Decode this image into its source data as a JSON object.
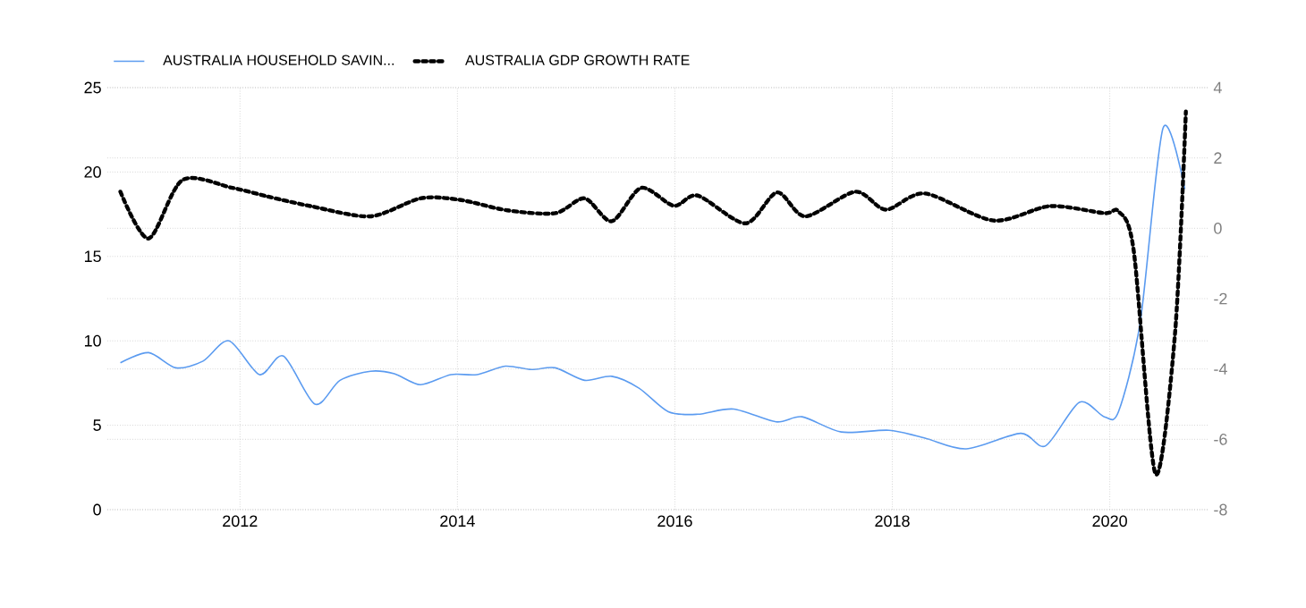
{
  "chart_data": {
    "type": "line",
    "legend": "top left",
    "grid": true,
    "xlim": [
      2010.78,
      2020.9
    ],
    "xticks": [
      2012,
      2014,
      2016,
      2018,
      2020
    ],
    "ylim": [
      0,
      25
    ],
    "yticks": [
      0,
      5,
      10,
      15,
      20,
      25
    ],
    "y2lim": [
      -8,
      4
    ],
    "y2ticks": [
      -8,
      -6,
      -4,
      -2,
      0,
      2,
      4
    ],
    "series": [
      {
        "name": "AUSTRALIA  HOUSEHOLD  SAVIN...",
        "color": "#5b9bf0",
        "line_style": "solid",
        "x": [
          2010.9,
          2011.16,
          2011.41,
          2011.66,
          2011.9,
          2012.18,
          2012.4,
          2012.69,
          2012.92,
          2013.2,
          2013.42,
          2013.66,
          2013.94,
          2014.18,
          2014.44,
          2014.68,
          2014.9,
          2015.17,
          2015.42,
          2015.67,
          2015.94,
          2016.21,
          2016.54,
          2016.93,
          2017.17,
          2017.53,
          2017.97,
          2018.3,
          2018.68,
          2019.18,
          2019.41,
          2019.72,
          2019.95,
          2020.08,
          2020.28,
          2020.49,
          2020.69
        ],
        "values": [
          8.7,
          9.3,
          8.4,
          8.8,
          10.0,
          8.0,
          9.1,
          6.25,
          7.66,
          8.2,
          8.05,
          7.4,
          8.0,
          8.0,
          8.5,
          8.3,
          8.4,
          7.66,
          7.9,
          7.2,
          5.8,
          5.65,
          5.96,
          5.2,
          5.5,
          4.6,
          4.7,
          4.24,
          3.6,
          4.52,
          3.78,
          6.36,
          5.5,
          5.8,
          11.1,
          22.6,
          19.0
        ]
      },
      {
        "name": "AUSTRALIA GDP GROWTH RATE",
        "color": "#000000",
        "line_style": "dotted",
        "axis": "y2",
        "x": [
          2010.9,
          2011.16,
          2011.47,
          2011.93,
          2012.26,
          2012.65,
          2013.2,
          2013.66,
          2014.02,
          2014.46,
          2014.9,
          2015.17,
          2015.42,
          2015.69,
          2015.99,
          2016.21,
          2016.65,
          2016.94,
          2017.2,
          2017.66,
          2017.94,
          2018.3,
          2018.93,
          2019.45,
          2019.95,
          2020.08,
          2020.22,
          2020.42,
          2020.6,
          2020.7
        ],
        "values": [
          1.04,
          -0.29,
          1.37,
          1.15,
          0.9,
          0.63,
          0.34,
          0.85,
          0.81,
          0.51,
          0.43,
          0.85,
          0.2,
          1.15,
          0.64,
          0.93,
          0.14,
          1.02,
          0.34,
          1.04,
          0.53,
          0.99,
          0.22,
          0.63,
          0.43,
          0.48,
          -0.63,
          -6.98,
          -3.0,
          3.32
        ]
      }
    ]
  }
}
